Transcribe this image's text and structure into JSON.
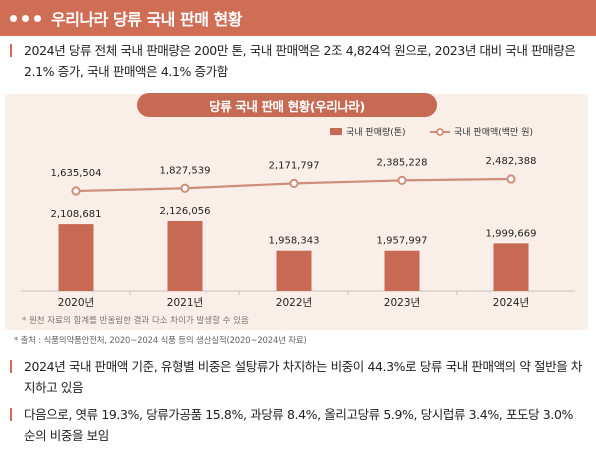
{
  "header": {
    "title": "우리나라 당류 국내 판매 현황"
  },
  "summary": "2024년 당류 전체 국내 판매량은 200만 톤, 국내 판매액은 2조 4,824억 원으로, 2023년 대비 국내 판매량은 2.1% 증가, 국내 판매액은 4.1% 증가함",
  "chart_data": {
    "type": "bar",
    "title": "당류 국내 판매 현황(우리나라)",
    "categories": [
      "2020년",
      "2021년",
      "2022년",
      "2023년",
      "2024년"
    ],
    "series": [
      {
        "name": "국내 판매량(톤)",
        "type": "bar",
        "values": [
          2108681,
          2126056,
          1958343,
          1957997,
          1999669
        ],
        "labels": [
          "2,108,681",
          "2,126,056",
          "1,958,343",
          "1,957,997",
          "1,999,669"
        ]
      },
      {
        "name": "국내 판매액(백만 원)",
        "type": "line",
        "values": [
          1635504,
          1827539,
          2171797,
          2385228,
          2482388
        ],
        "labels": [
          "1,635,504",
          "1,827,539",
          "2,171,797",
          "2,385,228",
          "2,482,388"
        ]
      }
    ],
    "note": "* 원천 자료의 합계를 반올림한 결과 다소 차이가 발생할 수 있음",
    "colors": {
      "bar": "#c86a53",
      "line": "#cf8e7b",
      "background": "#f9efe8",
      "accent": "#cf6d55"
    }
  },
  "source": "* 출처 : 식품의약품안전처, 2020~2024 식품 등의 생산실적(2020~2024년 자료)",
  "bullets": [
    "2024년 국내 판매액 기준, 유형별 비중은 설탕류가 차지하는 비중이 44.3%로 당류 국내 판매액의 약 절반을 차지하고 있음",
    "다음으로, 엿류 19.3%, 당류가공품 15.8%, 과당류 8.4%, 올리고당류 5.9%, 당시럽류 3.4%, 포도당 3.0% 순의 비중을 보임"
  ]
}
